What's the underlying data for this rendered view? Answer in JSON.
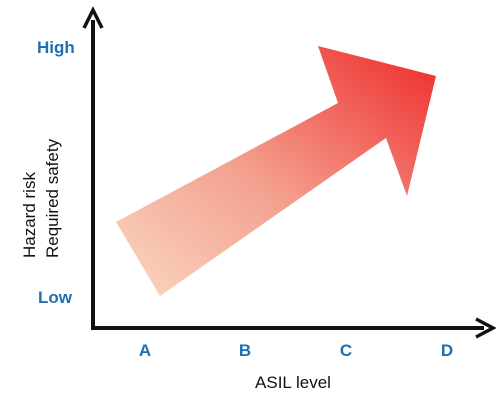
{
  "colors": {
    "axis": "#111111",
    "label_blue": "#1f6fb2",
    "arrow_start": "#f9d6bf",
    "arrow_end": "#ee2a2a"
  },
  "y_axis": {
    "high_label": "High",
    "low_label": "Low",
    "title_line1": "Hazard risk",
    "title_line2": "Required safety"
  },
  "x_axis": {
    "title": "ASIL level",
    "ticks": [
      "A",
      "B",
      "C",
      "D"
    ]
  },
  "arrow": {
    "meaning": "increasing"
  }
}
